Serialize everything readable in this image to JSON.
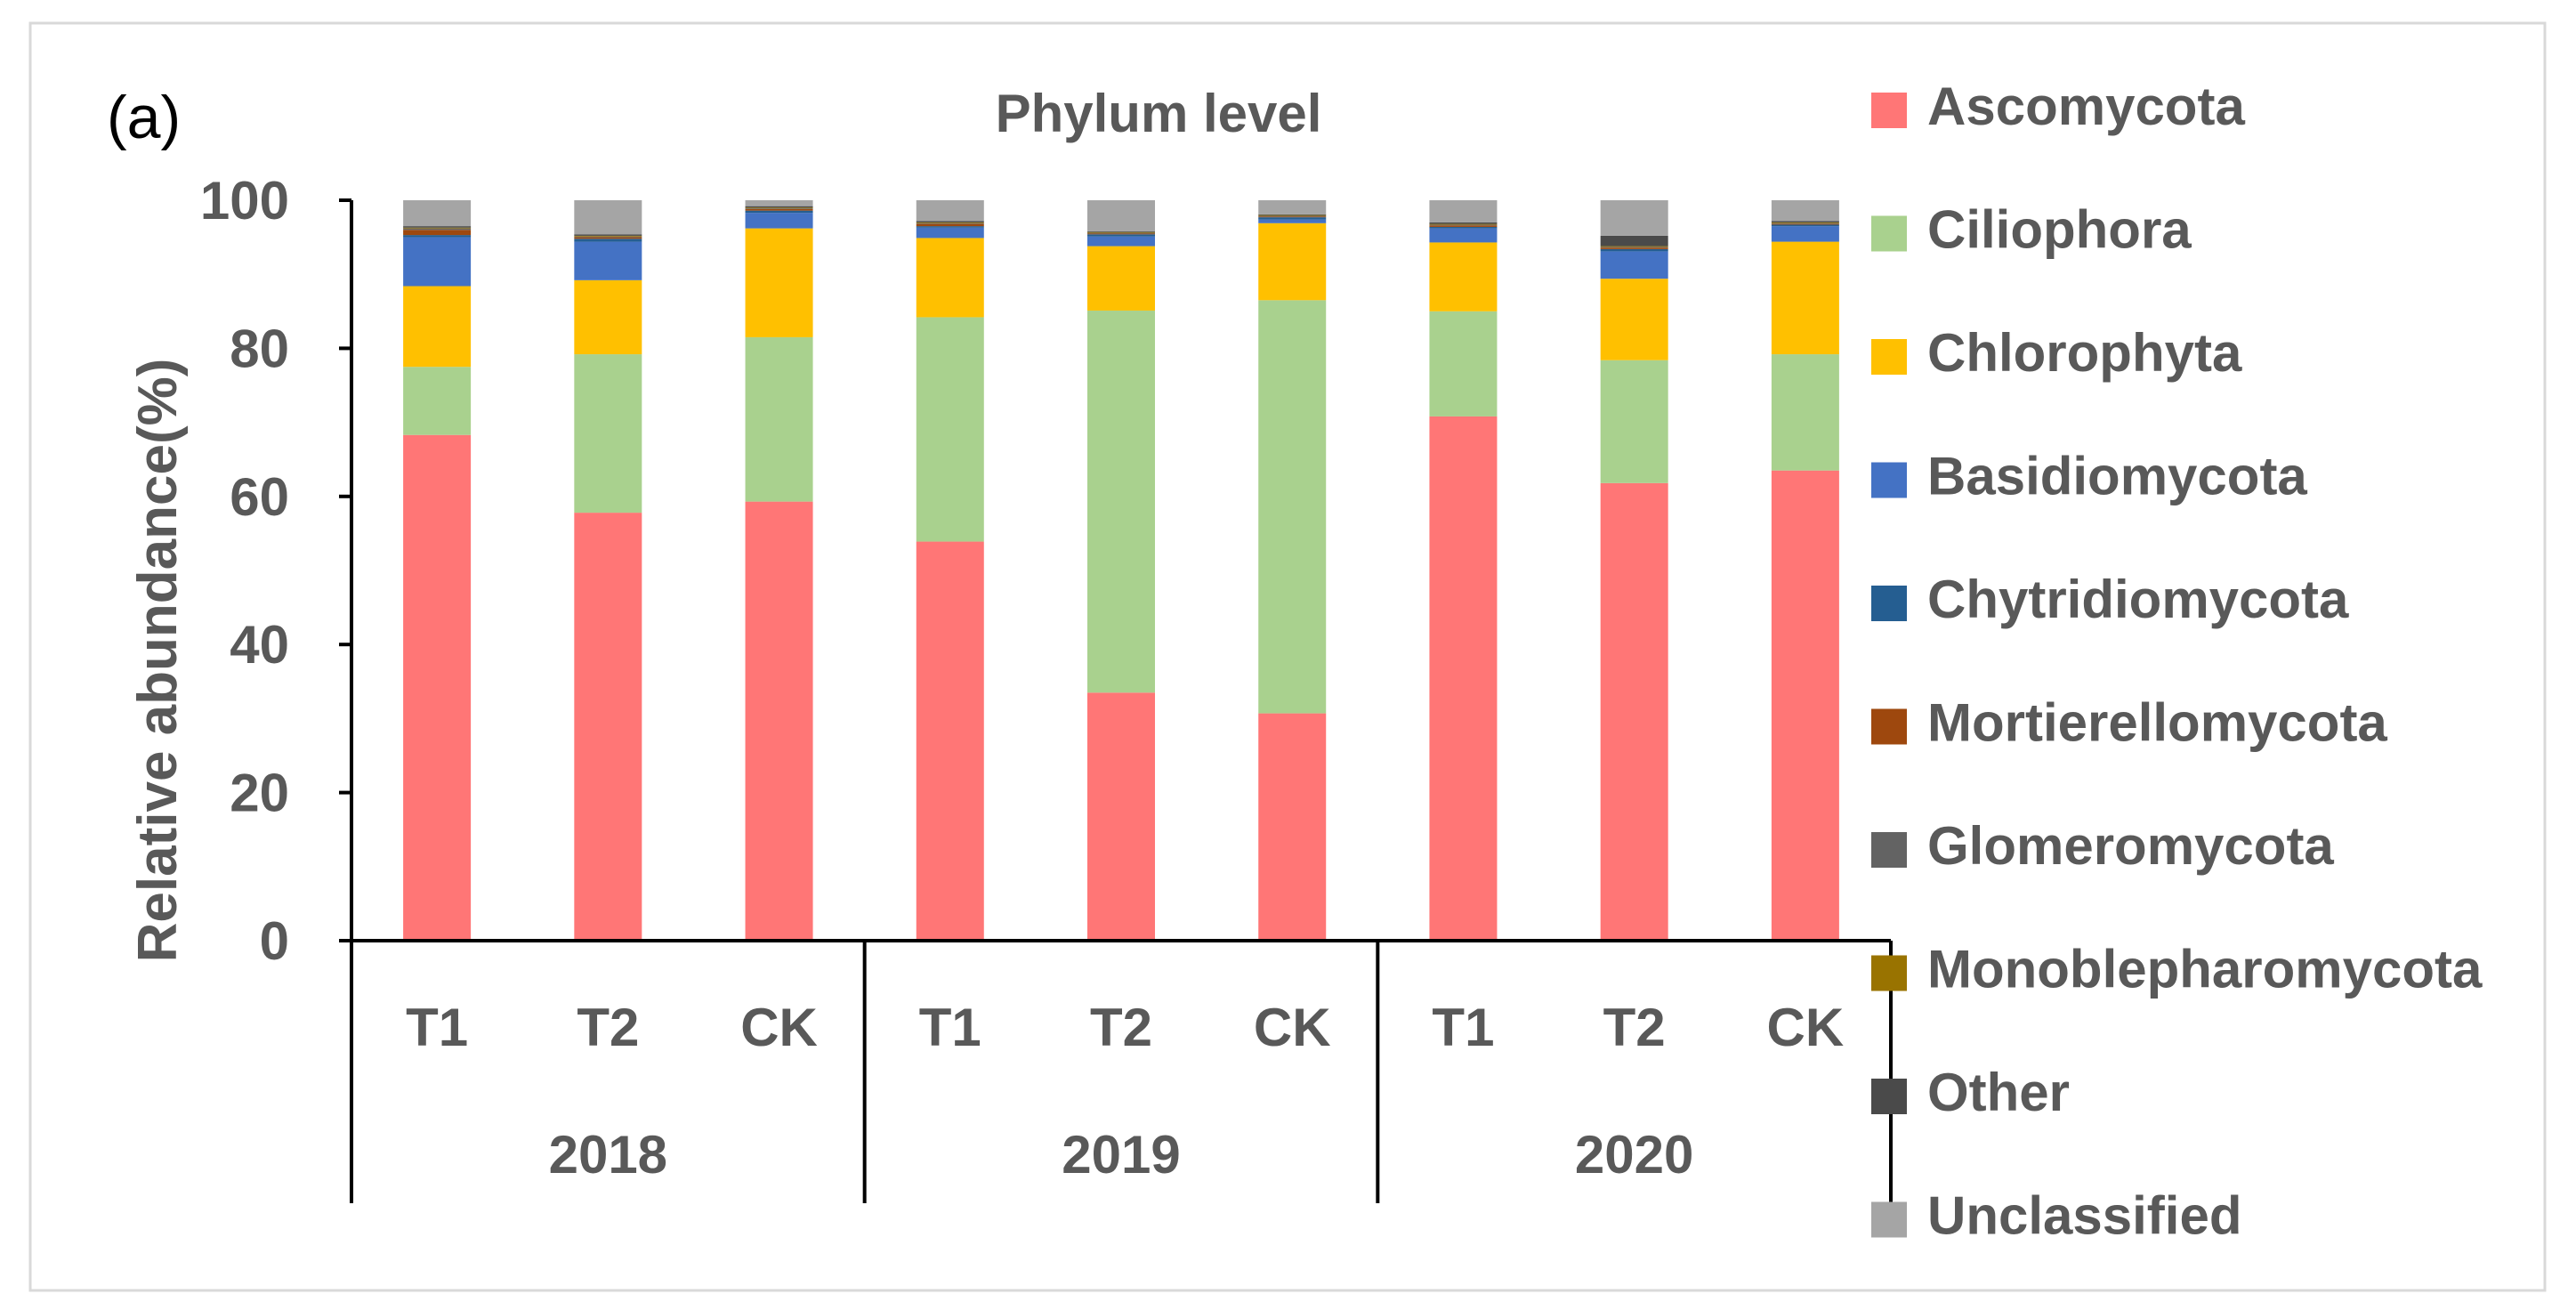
{
  "panel_label": "(a)",
  "chart_data": {
    "type": "bar",
    "stacked": true,
    "title": "Phylum level",
    "ylabel": "Relative abundance(%)",
    "xlabel": "",
    "ylim": [
      0,
      100
    ],
    "yticks": [
      0,
      20,
      40,
      60,
      80,
      100
    ],
    "grid": false,
    "legend_position": "right",
    "categories": [
      "T1",
      "T2",
      "CK",
      "T1",
      "T2",
      "CK",
      "T1",
      "T2",
      "CK"
    ],
    "groups": [
      {
        "label": "2018",
        "count": 3
      },
      {
        "label": "2019",
        "count": 3
      },
      {
        "label": "2020",
        "count": 3
      }
    ],
    "series": [
      {
        "name": "Ascomycota",
        "color": "#FF7676",
        "values": [
          68.3,
          57.8,
          59.3,
          53.9,
          33.5,
          30.7,
          70.8,
          61.8,
          63.5
        ]
      },
      {
        "name": "Ciliophora",
        "color": "#A9D18E",
        "values": [
          9.2,
          21.4,
          22.2,
          30.3,
          51.6,
          55.8,
          14.2,
          16.6,
          15.7
        ]
      },
      {
        "name": "Chlorophyta",
        "color": "#FFC000",
        "values": [
          10.9,
          10.0,
          14.7,
          10.7,
          8.7,
          10.4,
          9.3,
          11.0,
          15.2
        ]
      },
      {
        "name": "Basidiomycota",
        "color": "#4472C4",
        "values": [
          6.6,
          5.2,
          2.1,
          1.4,
          1.3,
          0.5,
          1.9,
          3.7,
          2.1
        ]
      },
      {
        "name": "Chytridiomycota",
        "color": "#255E91",
        "values": [
          0.3,
          0.4,
          0.3,
          0.2,
          0.3,
          0.3,
          0.2,
          0.3,
          0.2
        ]
      },
      {
        "name": "Mortierellomycota",
        "color": "#9E480E",
        "values": [
          0.7,
          0.2,
          0.2,
          0.3,
          0.1,
          0.1,
          0.2,
          0.2,
          0.1
        ]
      },
      {
        "name": "Glomeromycota",
        "color": "#636363",
        "values": [
          0.2,
          0.1,
          0.1,
          0.1,
          0.1,
          0.1,
          0.1,
          0.1,
          0.1
        ]
      },
      {
        "name": "Monoblepharomycota",
        "color": "#997300",
        "values": [
          0.1,
          0.1,
          0.1,
          0.1,
          0.1,
          0.1,
          0.1,
          0.1,
          0.1
        ]
      },
      {
        "name": "Other",
        "color": "#4A4A4A",
        "values": [
          0.2,
          0.2,
          0.2,
          0.2,
          0.1,
          0.1,
          0.2,
          1.4,
          0.2
        ]
      },
      {
        "name": "Unclassified",
        "color": "#A5A5A5",
        "values": [
          3.5,
          4.6,
          0.8,
          2.8,
          4.2,
          1.9,
          3.0,
          4.8,
          2.8
        ]
      }
    ]
  }
}
